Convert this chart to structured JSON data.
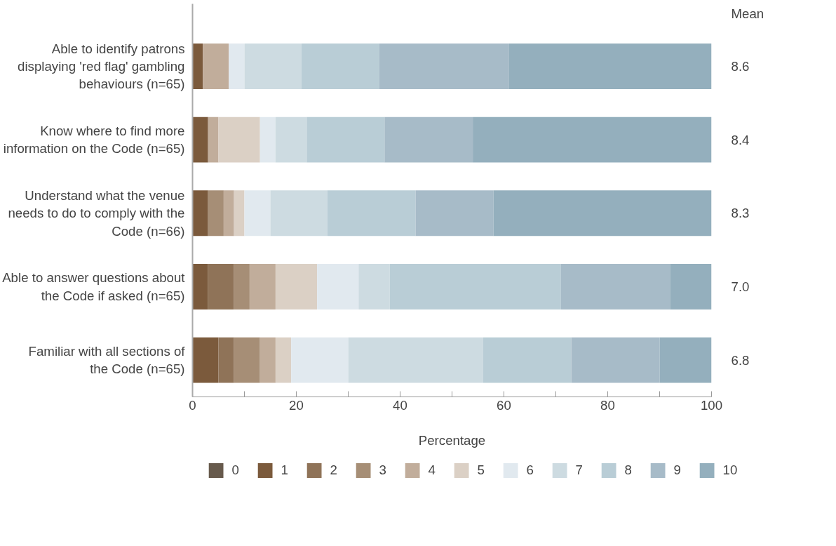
{
  "chart_data": {
    "type": "bar",
    "orientation": "horizontal",
    "stacked": true,
    "xlabel": "Percentage",
    "categories": [
      "Able to identify patrons displaying 'red flag' gambling behaviours (n=65)",
      "Know where to find more information on the Code (n=65)",
      "Understand what the venue needs to do to comply with the Code (n=66)",
      "Able to answer questions about the Code if asked (n=65)",
      "Familiar with all sections of the Code (n=65)"
    ],
    "series": [
      {
        "name": "0",
        "color": "#675a4c",
        "values": [
          0,
          0,
          0,
          0,
          0
        ]
      },
      {
        "name": "1",
        "color": "#7b5a3c",
        "values": [
          2,
          3,
          3,
          3,
          5
        ]
      },
      {
        "name": "2",
        "color": "#8f7358",
        "values": [
          0,
          0,
          0,
          5,
          3
        ]
      },
      {
        "name": "3",
        "color": "#a68e76",
        "values": [
          0,
          0,
          3,
          3,
          5
        ]
      },
      {
        "name": "4",
        "color": "#c1ad9b",
        "values": [
          5,
          2,
          2,
          5,
          3
        ]
      },
      {
        "name": "5",
        "color": "#dbd0c5",
        "values": [
          0,
          8,
          2,
          8,
          3
        ]
      },
      {
        "name": "6",
        "color": "#e1e9ef",
        "values": [
          3,
          3,
          5,
          8,
          11
        ]
      },
      {
        "name": "7",
        "color": "#cddbe1",
        "values": [
          11,
          6,
          11,
          6,
          26
        ]
      },
      {
        "name": "8",
        "color": "#b9cdd6",
        "values": [
          15,
          15,
          17,
          33,
          17
        ]
      },
      {
        "name": "9",
        "color": "#a7bbc8",
        "values": [
          25,
          17,
          15,
          21,
          17
        ]
      },
      {
        "name": "10",
        "color": "#94afbd",
        "values": [
          39,
          46,
          42,
          8,
          10
        ]
      }
    ],
    "xlim": [
      0,
      100
    ],
    "xticks": [
      0,
      {
        "value": 10,
        "label": null
      },
      20,
      {
        "value": 30,
        "label": null
      },
      40,
      {
        "value": 50,
        "label": null
      },
      60,
      {
        "value": 70,
        "label": null
      },
      80,
      {
        "value": 90,
        "label": null
      },
      100
    ],
    "annotations": [
      "Mean",
      "8.6",
      "8.4",
      "8.3",
      "7.0",
      "6.8"
    ],
    "legend": "bottom",
    "grid": false
  }
}
